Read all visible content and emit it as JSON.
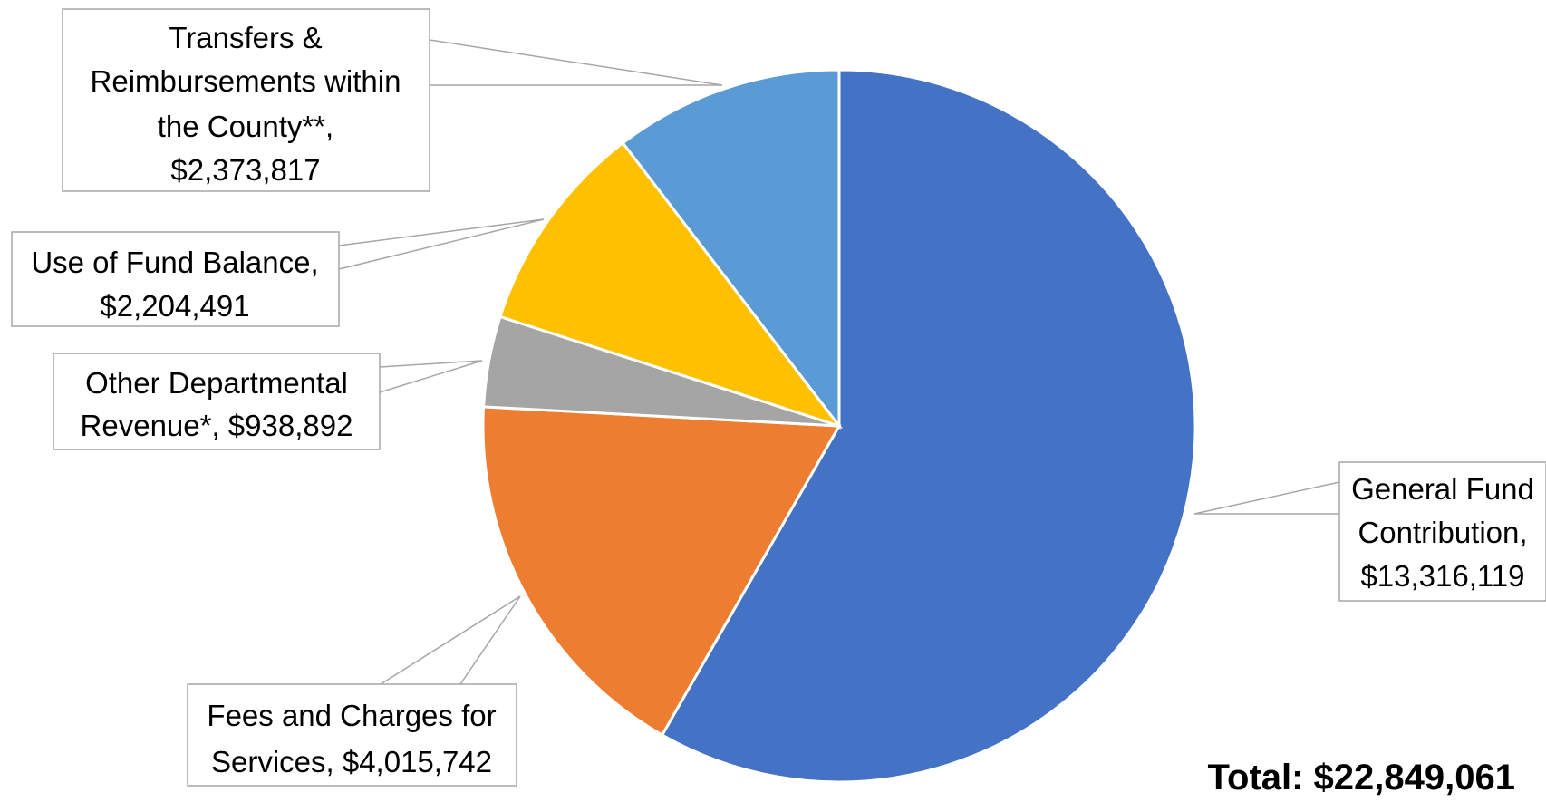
{
  "chart_data": {
    "type": "pie",
    "title": "",
    "start_angle_deg": 0,
    "direction": "clockwise",
    "slices": [
      {
        "label_lines": [
          "General Fund",
          "Contribution,",
          "$13,316,119"
        ],
        "category": "General Fund Contribution",
        "value": 13316119,
        "color": "#4472c4"
      },
      {
        "label_lines": [
          "Fees and Charges for",
          "Services,  $4,015,742"
        ],
        "category": "Fees and Charges for Services",
        "value": 4015742,
        "color": "#ed7d31"
      },
      {
        "label_lines": [
          "Other Departmental",
          "Revenue*,  $938,892"
        ],
        "category": "Other Departmental Revenue*",
        "value": 938892,
        "color": "#a5a5a5"
      },
      {
        "label_lines": [
          "Use of Fund Balance,",
          "$2,204,491"
        ],
        "category": "Use of Fund Balance",
        "value": 2204491,
        "color": "#ffc000"
      },
      {
        "label_lines": [
          "Transfers &",
          "Reimbursements within",
          "the County**,",
          "$2,373,817"
        ],
        "category": "Transfers & Reimbursements within the County**",
        "value": 2373817,
        "color": "#5b9bd5"
      }
    ],
    "total_label": "Total: $22,849,061"
  }
}
